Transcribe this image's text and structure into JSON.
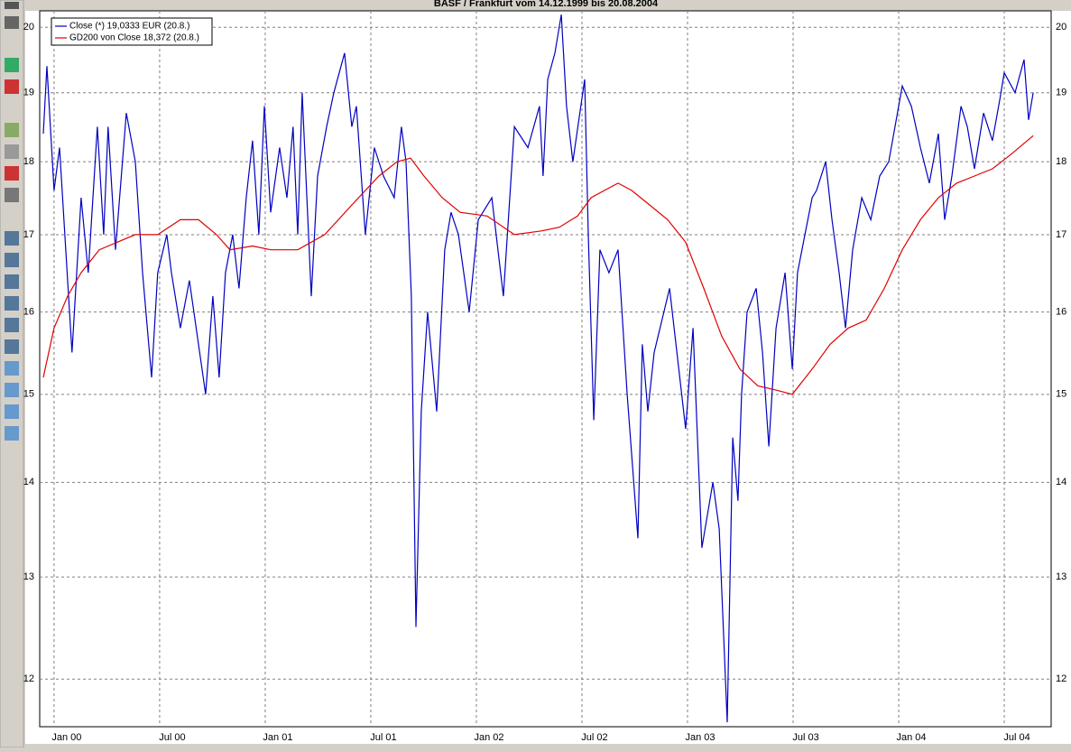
{
  "chart_data": {
    "type": "line",
    "title": "BASF / Frankfurt vom 14.12.1999 bis 20.08.2004",
    "log_y": true,
    "grid": true,
    "legend_position": "upper left",
    "xlim": [
      1999.932,
      2004.722
    ],
    "ylim": [
      11.56,
      20.26
    ],
    "xticks": [
      {
        "value": 2000,
        "label": "Jan 00"
      },
      {
        "value": 2000.5,
        "label": "Jul 00"
      },
      {
        "value": 2001,
        "label": "Jan 01"
      },
      {
        "value": 2001.5,
        "label": "Jul 01"
      },
      {
        "value": 2002,
        "label": "Jan 02"
      },
      {
        "value": 2002.5,
        "label": "Jul 02"
      },
      {
        "value": 2003,
        "label": "Jan 03"
      },
      {
        "value": 2003.5,
        "label": "Jul 03"
      },
      {
        "value": 2004,
        "label": "Jan 04"
      },
      {
        "value": 2004.5,
        "label": "Jul 04"
      }
    ],
    "yticks": [
      12,
      13,
      14,
      15,
      16,
      17,
      18,
      19,
      20
    ],
    "series": [
      {
        "name": "Close (*) 19,0333 EUR (20.8.)",
        "color": "#0000c0",
        "x": [
          1999.949,
          1999.966,
          2000.0,
          2000.026,
          2000.085,
          2000.128,
          2000.162,
          2000.205,
          2000.235,
          2000.256,
          2000.291,
          2000.342,
          2000.385,
          2000.419,
          2000.462,
          2000.491,
          2000.534,
          2000.556,
          2000.598,
          2000.641,
          2000.684,
          2000.718,
          2000.752,
          2000.782,
          2000.812,
          2000.846,
          2000.876,
          2000.91,
          2000.94,
          2000.97,
          2000.996,
          2001.026,
          2001.068,
          2001.103,
          2001.132,
          2001.154,
          2001.175,
          2001.218,
          2001.248,
          2001.291,
          2001.325,
          2001.376,
          2001.41,
          2001.432,
          2001.474,
          2001.517,
          2001.56,
          2001.611,
          2001.645,
          2001.667,
          2001.692,
          2001.714,
          2001.739,
          2001.769,
          2001.812,
          2001.85,
          2001.88,
          2001.915,
          2001.966,
          2002.009,
          2002.073,
          2002.128,
          2002.18,
          2002.244,
          2002.299,
          2002.316,
          2002.338,
          2002.372,
          2002.402,
          2002.427,
          2002.457,
          2002.513,
          2002.53,
          2002.556,
          2002.585,
          2002.628,
          2002.671,
          2002.714,
          2002.765,
          2002.786,
          2002.812,
          2002.842,
          2002.915,
          2002.991,
          2003.026,
          2003.068,
          2003.12,
          2003.15,
          2003.188,
          2003.214,
          2003.239,
          2003.256,
          2003.282,
          2003.325,
          2003.355,
          2003.385,
          2003.419,
          2003.462,
          2003.496,
          2003.521,
          2003.556,
          2003.59,
          2003.611,
          2003.654,
          2003.684,
          2003.718,
          2003.748,
          2003.782,
          2003.825,
          2003.868,
          2003.91,
          2003.953,
          2004.017,
          2004.06,
          2004.103,
          2004.145,
          2004.188,
          2004.218,
          2004.252,
          2004.295,
          2004.325,
          2004.359,
          2004.402,
          2004.444,
          2004.479,
          2004.5,
          2004.551,
          2004.594,
          2004.615,
          2004.637
        ],
        "values": [
          18.4,
          19.4,
          17.6,
          18.2,
          15.5,
          17.5,
          16.5,
          18.5,
          17.0,
          18.5,
          16.8,
          18.7,
          18.0,
          16.5,
          15.2,
          16.5,
          17.0,
          16.5,
          15.8,
          16.4,
          15.6,
          15.0,
          16.2,
          15.2,
          16.5,
          17.0,
          16.3,
          17.5,
          18.3,
          17.0,
          18.8,
          17.3,
          18.2,
          17.5,
          18.5,
          17.0,
          19.0,
          16.2,
          17.8,
          18.5,
          19.0,
          19.6,
          18.5,
          18.8,
          17.0,
          18.2,
          17.8,
          17.5,
          18.5,
          18.0,
          16.2,
          12.5,
          14.8,
          16.0,
          14.8,
          16.8,
          17.3,
          17.0,
          16.0,
          17.2,
          17.5,
          16.2,
          18.5,
          18.2,
          18.8,
          17.8,
          19.2,
          19.6,
          20.2,
          18.8,
          18.0,
          19.2,
          17.0,
          14.7,
          16.8,
          16.5,
          16.8,
          15.0,
          13.4,
          15.6,
          14.8,
          15.5,
          16.3,
          14.6,
          15.8,
          13.3,
          14.0,
          13.5,
          11.6,
          14.5,
          13.8,
          15.0,
          16.0,
          16.3,
          15.5,
          14.4,
          15.8,
          16.5,
          15.3,
          16.5,
          17.0,
          17.5,
          17.6,
          18.0,
          17.2,
          16.5,
          15.8,
          16.8,
          17.5,
          17.2,
          17.8,
          18.0,
          19.1,
          18.8,
          18.2,
          17.7,
          18.4,
          17.2,
          17.8,
          18.8,
          18.5,
          17.9,
          18.7,
          18.3,
          18.9,
          19.3,
          19.0,
          19.5,
          18.6,
          19.0
        ]
      },
      {
        "name": "GD200 von Close 18,372 (20.8.)",
        "color": "#e00000",
        "x": [
          1999.949,
          2000.0,
          2000.064,
          2000.128,
          2000.214,
          2000.299,
          2000.385,
          2000.491,
          2000.598,
          2000.684,
          2000.769,
          2000.833,
          2000.94,
          2001.026,
          2001.154,
          2001.282,
          2001.41,
          2001.538,
          2001.624,
          2001.688,
          2001.752,
          2001.838,
          2001.923,
          2002.051,
          2002.18,
          2002.308,
          2002.393,
          2002.479,
          2002.543,
          2002.607,
          2002.671,
          2002.735,
          2002.821,
          2002.906,
          2002.991,
          2003.077,
          2003.162,
          2003.248,
          2003.333,
          2003.419,
          2003.496,
          2003.59,
          2003.675,
          2003.761,
          2003.846,
          2003.932,
          2004.017,
          2004.103,
          2004.188,
          2004.274,
          2004.359,
          2004.444,
          2004.53,
          2004.637
        ],
        "values": [
          15.2,
          15.8,
          16.2,
          16.5,
          16.8,
          16.9,
          17.0,
          17.0,
          17.2,
          17.2,
          17.0,
          16.8,
          16.85,
          16.8,
          16.8,
          17.0,
          17.4,
          17.8,
          18.0,
          18.05,
          17.8,
          17.5,
          17.3,
          17.25,
          17.0,
          17.05,
          17.1,
          17.25,
          17.5,
          17.6,
          17.7,
          17.6,
          17.4,
          17.2,
          16.9,
          16.3,
          15.7,
          15.3,
          15.1,
          15.05,
          15.0,
          15.3,
          15.6,
          15.8,
          15.9,
          16.3,
          16.8,
          17.2,
          17.5,
          17.7,
          17.8,
          17.9,
          18.1,
          18.372
        ]
      }
    ]
  }
}
